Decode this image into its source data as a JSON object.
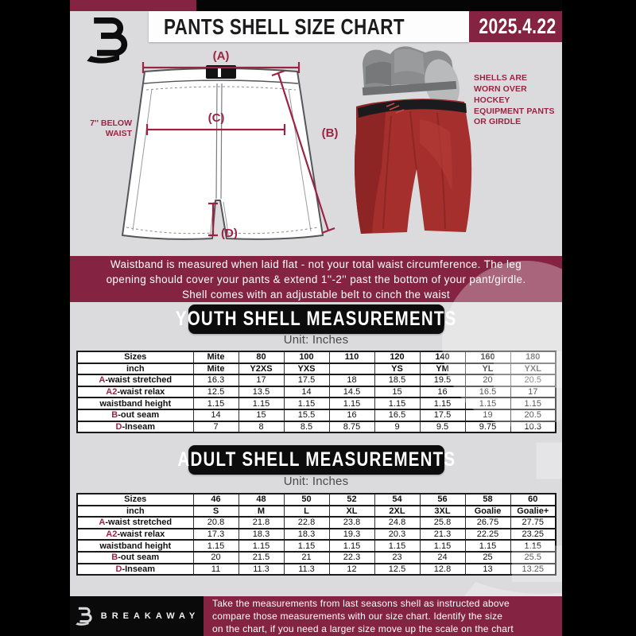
{
  "colors": {
    "maroon": "#852342",
    "accent_red": "#9b2443",
    "page_bg": "#dbdbdd",
    "black": "#0a0a0a",
    "white": "#ffffff",
    "pants_red": "#a42f2c",
    "girdle_gray": "#8b8c8e"
  },
  "header": {
    "title": "PANTS SHELL SIZE CHART",
    "date": "2025.4.22",
    "logo_name": "breakaway-monogram"
  },
  "diagram": {
    "label_a": "(A)",
    "label_b": "(B)",
    "label_c": "(C)",
    "label_d": "(D)",
    "waist_note_line1": "7'' BELOW",
    "waist_note_line2": "WAIST",
    "side_note": "SHELLS ARE WORN OVER HOCKEY EQUIPMENT PANTS OR GIRDLE"
  },
  "info_banner": {
    "lines": [
      "Waistband is measured when laid flat - not your total waist circumference. The leg",
      "opening should cover your pants & extend 1''-2'' past the bottom of your pant/girdle.",
      "Shell comes with an adjustable belt to cinch the waist"
    ]
  },
  "sections": [
    {
      "title": "YOUTH SHELL MEASUREMENTS",
      "unit": "Unit: Inches",
      "table": {
        "rows": [
          {
            "prefix": "",
            "label": "Sizes",
            "bold": true,
            "values": [
              "Mite",
              "80",
              "100",
              "110",
              "120",
              "140",
              "160",
              "180"
            ]
          },
          {
            "prefix": "",
            "label": "inch",
            "bold": true,
            "values": [
              "Mite",
              "Y2XS",
              "YXS",
              "",
              "YS",
              "YM",
              "YL",
              "YXL"
            ]
          },
          {
            "prefix": "A",
            "label": "-waist stretched",
            "bold": false,
            "values": [
              "16.3",
              "17",
              "17.5",
              "18",
              "18.5",
              "19.5",
              "20",
              "20.5"
            ]
          },
          {
            "prefix": "A2",
            "label": "-waist relax",
            "bold": false,
            "values": [
              "12.5",
              "13.5",
              "14",
              "14.5",
              "15",
              "16",
              "16.5",
              "17"
            ]
          },
          {
            "prefix": "",
            "label": "waistband height",
            "bold": false,
            "values": [
              "1.15",
              "1.15",
              "1.15",
              "1.15",
              "1.15",
              "1.15",
              "1.15",
              "1.15"
            ]
          },
          {
            "prefix": "B",
            "label": "-out seam",
            "bold": false,
            "values": [
              "14",
              "15",
              "15.5",
              "16",
              "16.5",
              "17.5",
              "19",
              "20.5"
            ]
          },
          {
            "prefix": "D",
            "label": "-Inseam",
            "bold": false,
            "values": [
              "7",
              "8",
              "8.5",
              "8.75",
              "9",
              "9.5",
              "9.75",
              "10.3"
            ]
          }
        ]
      }
    },
    {
      "title": "ADULT SHELL MEASUREMENTS",
      "unit": "Unit: Inches",
      "table": {
        "rows": [
          {
            "prefix": "",
            "label": "Sizes",
            "bold": true,
            "values": [
              "46",
              "48",
              "50",
              "52",
              "54",
              "56",
              "58",
              "60"
            ]
          },
          {
            "prefix": "",
            "label": "inch",
            "bold": true,
            "values": [
              "S",
              "M",
              "L",
              "XL",
              "2XL",
              "3XL",
              "Goalie",
              "Goalie+"
            ]
          },
          {
            "prefix": "A",
            "label": "-waist stretched",
            "bold": false,
            "values": [
              "20.8",
              "21.8",
              "22.8",
              "23.8",
              "24.8",
              "25.8",
              "26.75",
              "27.75"
            ]
          },
          {
            "prefix": "A2",
            "label": "-waist relax",
            "bold": false,
            "values": [
              "17.3",
              "18.3",
              "18.3",
              "19.3",
              "20.3",
              "21.3",
              "22.25",
              "23.25"
            ]
          },
          {
            "prefix": "",
            "label": "waistband height",
            "bold": false,
            "values": [
              "1.15",
              "1.15",
              "1.15",
              "1.15",
              "1.15",
              "1.15",
              "1.15",
              "1.15"
            ]
          },
          {
            "prefix": "B",
            "label": "-out seam",
            "bold": false,
            "values": [
              "20",
              "21.5",
              "21",
              "22.3",
              "23",
              "24",
              "25",
              "25.5"
            ]
          },
          {
            "prefix": "D",
            "label": "-Inseam",
            "bold": false,
            "values": [
              "11",
              "11.3",
              "11.3",
              "12",
              "12.5",
              "12.8",
              "13",
              "13.25"
            ]
          }
        ]
      }
    }
  ],
  "footer": {
    "brand": "BREAKAWAY",
    "lines": [
      "Take the measurements from last seasons shell as instructed above",
      "compare those measurements  with our size chart. Identify the size",
      "on the chart, if you need a larger size move up the scale on the chart"
    ]
  }
}
